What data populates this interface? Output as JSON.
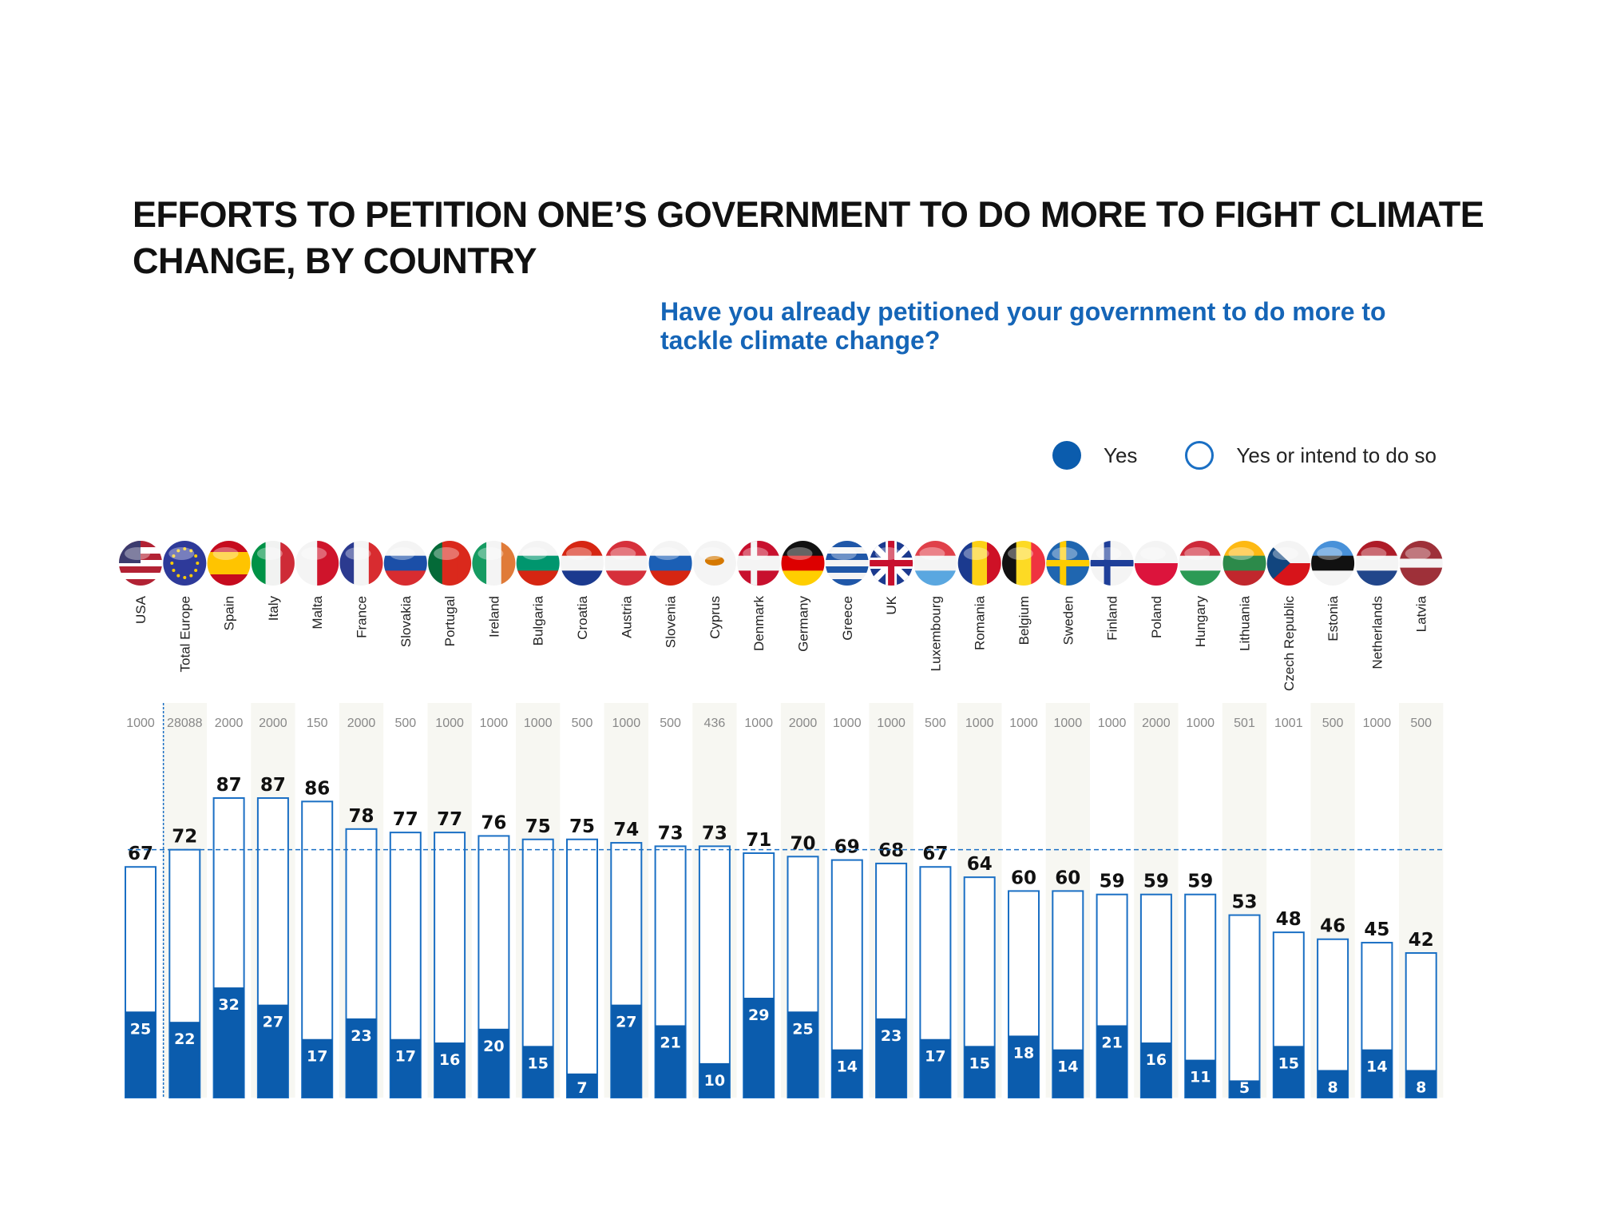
{
  "title": "EFFORTS TO PETITION ONE’S GOVERNMENT TO DO MORE TO FIGHT CLIMATE CHANGE, BY COUNTRY",
  "subtitle": "Have you already petitioned your government to do more to tackle climate change?",
  "colors": {
    "yes": "#0b5cad",
    "outline": "#1a6fc4",
    "stripe": "#f7f7f2",
    "reference": "#1a6fc4"
  },
  "chart_data": {
    "type": "bar",
    "title": "EFFORTS TO PETITION ONE’S GOVERNMENT TO DO MORE TO FIGHT CLIMATE CHANGE, BY COUNTRY",
    "subtitle": "Have you already petitioned your government to do more to tackle climate change?",
    "unit": "%",
    "ylim": [
      0,
      100
    ],
    "legend_position": "top-right",
    "reference_line": {
      "series": "Yes or intend to do so",
      "category": "Total Europe",
      "value": 72
    },
    "categories": [
      "USA",
      "Total Europe",
      "Spain",
      "Italy",
      "Malta",
      "France",
      "Slovakia",
      "Portugal",
      "Ireland",
      "Bulgaria",
      "Croatia",
      "Austria",
      "Slovenia",
      "Cyprus",
      "Denmark",
      "Germany",
      "Greece",
      "UK",
      "Luxembourg",
      "Romania",
      "Belgium",
      "Sweden",
      "Finland",
      "Poland",
      "Hungary",
      "Lithuania",
      "Czech Republic",
      "Estonia",
      "Netherlands",
      "Latvia"
    ],
    "sample_sizes": [
      1000,
      28088,
      2000,
      2000,
      150,
      2000,
      500,
      1000,
      1000,
      1000,
      500,
      1000,
      500,
      436,
      1000,
      2000,
      1000,
      1000,
      500,
      1000,
      1000,
      1000,
      1000,
      2000,
      1000,
      501,
      1001,
      500,
      1000,
      500
    ],
    "series": [
      {
        "name": "Yes",
        "values": [
          25,
          22,
          32,
          27,
          17,
          23,
          17,
          16,
          20,
          15,
          7,
          27,
          21,
          10,
          29,
          25,
          14,
          23,
          17,
          15,
          18,
          14,
          21,
          16,
          11,
          5,
          15,
          8,
          14,
          8
        ]
      },
      {
        "name": "Yes or intend to do so",
        "values": [
          67,
          72,
          87,
          87,
          86,
          78,
          77,
          77,
          76,
          75,
          75,
          74,
          73,
          73,
          71,
          70,
          69,
          68,
          67,
          64,
          60,
          60,
          59,
          59,
          59,
          53,
          48,
          46,
          45,
          42
        ]
      }
    ]
  },
  "flags": [
    {
      "d": "h",
      "c": [
        "#b22234",
        "#fff",
        "#b22234",
        "#fff",
        "#b22234",
        "#fff",
        "#b22234"
      ],
      "canton": "#3c3b6e"
    },
    {
      "d": "h",
      "c": [
        "#2e3a9a"
      ],
      "stars": true
    },
    {
      "d": "h",
      "c": [
        "#c60b1e",
        "#ffc400",
        "#ffc400",
        "#c60b1e"
      ]
    },
    {
      "d": "v",
      "c": [
        "#009246",
        "#f1f2f1",
        "#ce2b37"
      ]
    },
    {
      "d": "v",
      "c": [
        "#f4f4f4",
        "#cf142b"
      ]
    },
    {
      "d": "v",
      "c": [
        "#2b3a8f",
        "#f4f4f4",
        "#d82c30"
      ]
    },
    {
      "d": "h",
      "c": [
        "#f4f4f4",
        "#1b4fa8",
        "#d82c30"
      ]
    },
    {
      "d": "v",
      "c": [
        "#046a38",
        "#da291c",
        "#da291c"
      ]
    },
    {
      "d": "v",
      "c": [
        "#169b62",
        "#f4f4f4",
        "#e07b39"
      ]
    },
    {
      "d": "h",
      "c": [
        "#f4f4f4",
        "#00966e",
        "#d62612"
      ]
    },
    {
      "d": "h",
      "c": [
        "#d62612",
        "#f4f4f4",
        "#1b3a8f"
      ]
    },
    {
      "d": "h",
      "c": [
        "#d6303b",
        "#f4f4f4",
        "#d6303b"
      ]
    },
    {
      "d": "h",
      "c": [
        "#f4f4f4",
        "#1b5fb5",
        "#d62612"
      ]
    },
    {
      "d": "h",
      "c": [
        "#f4f4f4"
      ],
      "cyprus": true
    },
    {
      "d": "h",
      "c": [
        "#c8102e",
        "#f4f4f4",
        "#c8102e"
      ],
      "cross": "#f4f4f4"
    },
    {
      "d": "h",
      "c": [
        "#111",
        "#dd0000",
        "#ffce00"
      ]
    },
    {
      "d": "h",
      "c": [
        "#1f57a8",
        "#f4f4f4",
        "#1f57a8",
        "#f4f4f4",
        "#1f57a8",
        "#f4f4f4",
        "#1f57a8"
      ]
    },
    {
      "d": "h",
      "c": [
        "#1b3a8f"
      ],
      "uk": true
    },
    {
      "d": "h",
      "c": [
        "#e0404a",
        "#f4f4f4",
        "#5aa7e0"
      ]
    },
    {
      "d": "v",
      "c": [
        "#1b3a8f",
        "#fcd116",
        "#ce1126"
      ]
    },
    {
      "d": "v",
      "c": [
        "#111",
        "#fdda24",
        "#ef3340"
      ]
    },
    {
      "d": "h",
      "c": [
        "#1f66b0"
      ],
      "cross": "#fecc00"
    },
    {
      "d": "h",
      "c": [
        "#f4f4f4"
      ],
      "cross": "#1f3f99"
    },
    {
      "d": "h",
      "c": [
        "#f4f4f4",
        "#dc143c"
      ]
    },
    {
      "d": "h",
      "c": [
        "#ce2939",
        "#f4f4f4",
        "#2c9a55"
      ]
    },
    {
      "d": "h",
      "c": [
        "#fdb913",
        "#2c8a4a",
        "#c1272d"
      ]
    },
    {
      "d": "h",
      "c": [
        "#f4f4f4",
        "#d7141a"
      ],
      "tri": "#11457e"
    },
    {
      "d": "h",
      "c": [
        "#4891d9",
        "#111",
        "#f4f4f4"
      ]
    },
    {
      "d": "h",
      "c": [
        "#ae1c28",
        "#f4f4f4",
        "#21468b"
      ]
    },
    {
      "d": "h",
      "c": [
        "#9e3039",
        "#9e3039",
        "#f4f4f4",
        "#9e3039",
        "#9e3039"
      ]
    }
  ]
}
